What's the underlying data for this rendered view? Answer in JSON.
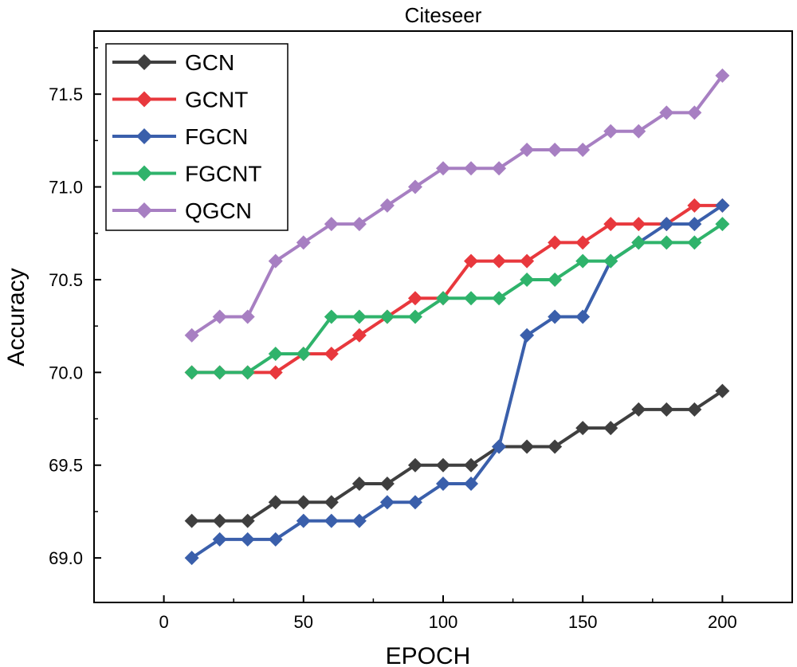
{
  "chart_data": {
    "type": "line",
    "title": "Citeseer",
    "xlabel": "EPOCH",
    "ylabel": "Accuracy",
    "xlim": [
      -25,
      225
    ],
    "ylim": [
      68.76,
      71.84
    ],
    "xticks": [
      0,
      50,
      100,
      150,
      200
    ],
    "yticks": [
      69.0,
      69.5,
      70.0,
      70.5,
      71.0,
      71.5
    ],
    "xtick_labels": [
      "0",
      "50",
      "100",
      "150",
      "200"
    ],
    "ytick_labels": [
      "69.0",
      "69.5",
      "70.0",
      "70.5",
      "71.0",
      "71.5"
    ],
    "legend_position": "top-left",
    "x": [
      10,
      20,
      30,
      40,
      50,
      60,
      70,
      80,
      90,
      100,
      110,
      120,
      130,
      140,
      150,
      160,
      170,
      180,
      190,
      200
    ],
    "series": [
      {
        "name": "GCN",
        "color": "#3f3f3f",
        "marker": "diamond",
        "values": [
          69.2,
          69.2,
          69.2,
          69.3,
          69.3,
          69.3,
          69.4,
          69.4,
          69.5,
          69.5,
          69.5,
          69.6,
          69.6,
          69.6,
          69.7,
          69.7,
          69.8,
          69.8,
          69.8,
          69.9
        ]
      },
      {
        "name": "GCNT",
        "color": "#e8383d",
        "marker": "diamond",
        "values": [
          70.0,
          70.0,
          70.0,
          70.0,
          70.1,
          70.1,
          70.2,
          70.3,
          70.4,
          70.4,
          70.6,
          70.6,
          70.6,
          70.7,
          70.7,
          70.8,
          70.8,
          70.8,
          70.9,
          70.9
        ]
      },
      {
        "name": "FGCN",
        "color": "#3a5fab",
        "marker": "diamond",
        "values": [
          69.0,
          69.1,
          69.1,
          69.1,
          69.2,
          69.2,
          69.2,
          69.3,
          69.3,
          69.4,
          69.4,
          69.6,
          70.2,
          70.3,
          70.3,
          70.6,
          70.7,
          70.8,
          70.8,
          70.9
        ]
      },
      {
        "name": "FGCNT",
        "color": "#2fb36b",
        "marker": "diamond",
        "values": [
          70.0,
          70.0,
          70.0,
          70.1,
          70.1,
          70.3,
          70.3,
          70.3,
          70.3,
          70.4,
          70.4,
          70.4,
          70.5,
          70.5,
          70.6,
          70.6,
          70.7,
          70.7,
          70.7,
          70.8
        ]
      },
      {
        "name": "QGCN",
        "color": "#a77fc2",
        "marker": "diamond",
        "values": [
          70.2,
          70.3,
          70.3,
          70.6,
          70.7,
          70.8,
          70.8,
          70.9,
          71.0,
          71.1,
          71.1,
          71.1,
          71.2,
          71.2,
          71.2,
          71.3,
          71.3,
          71.4,
          71.4,
          71.6
        ]
      }
    ]
  }
}
